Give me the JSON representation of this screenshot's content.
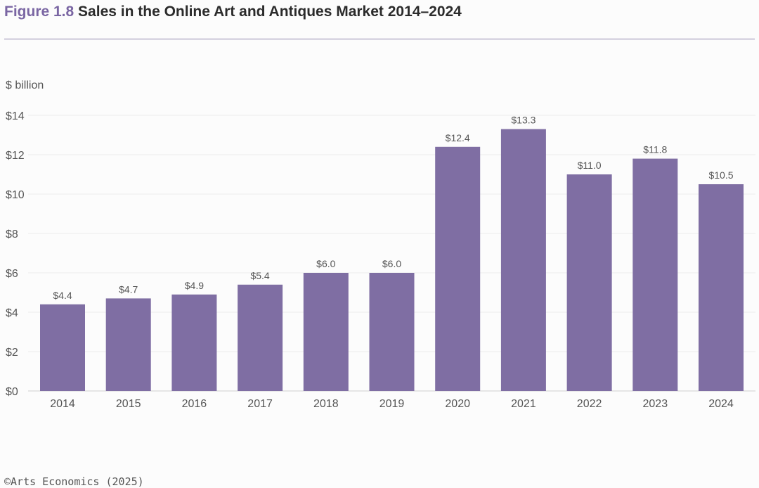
{
  "header": {
    "figure_label": "Figure 1.8",
    "title": "Sales in the Online Art and Antiques Market 2014–2024"
  },
  "colors": {
    "bar": "#7f6ea3",
    "figure_label": "#7a66a3",
    "rule": "#8f84ad",
    "grid": "#ececec",
    "text": "#555555"
  },
  "chart_data": {
    "type": "bar",
    "title": "Sales in the Online Art and Antiques Market 2014–2024",
    "ylabel": "$ billion",
    "xlabel": "",
    "categories": [
      "2014",
      "2015",
      "2016",
      "2017",
      "2018",
      "2019",
      "2020",
      "2021",
      "2022",
      "2023",
      "2024"
    ],
    "values": [
      4.4,
      4.7,
      4.9,
      5.4,
      6.0,
      6.0,
      12.4,
      13.3,
      11.0,
      11.8,
      10.5
    ],
    "value_labels": [
      "$4.4",
      "$4.7",
      "$4.9",
      "$5.4",
      "$6.0",
      "$6.0",
      "$12.4",
      "$13.3",
      "$11.0",
      "$11.8",
      "$10.5"
    ],
    "ylim": [
      0,
      14
    ],
    "yticks": [
      0,
      2,
      4,
      6,
      8,
      10,
      12,
      14
    ],
    "ytick_labels": [
      "$0",
      "$2",
      "$4",
      "$6",
      "$8",
      "$10",
      "$12",
      "$14"
    ],
    "grid": true,
    "legend": "none"
  },
  "footer": {
    "source": "©Arts Economics (2025)"
  }
}
